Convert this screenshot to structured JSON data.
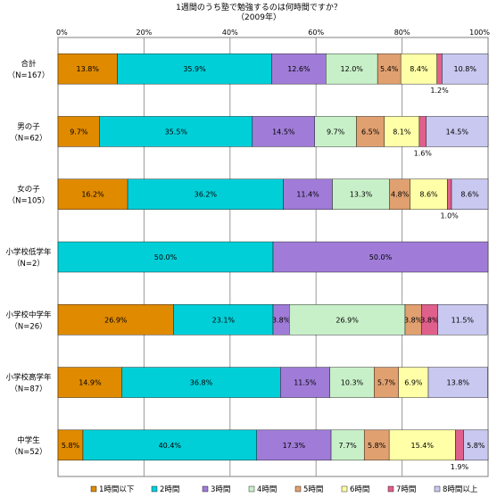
{
  "chart_data": {
    "type": "bar",
    "orientation": "horizontal",
    "stacked": true,
    "percent_stacked": true,
    "title": "1週間のうち塾で勉強するのは何時間ですか？",
    "subtitle": "（2009年）",
    "xlim": [
      0,
      100
    ],
    "x_ticks": [
      "0%",
      "20%",
      "40%",
      "60%",
      "80%",
      "100%"
    ],
    "x_tick_values": [
      0,
      20,
      40,
      60,
      80,
      100
    ],
    "grid": true,
    "legend_position": "bottom",
    "categories": [
      [
        "合計",
        "（N=167）"
      ],
      [
        "男の子",
        "（N=62）"
      ],
      [
        "女の子",
        "（N=105）"
      ],
      [
        "小学校低学年",
        "（N=2）"
      ],
      [
        "小学校中学年",
        "（N=26）"
      ],
      [
        "小学校高学年",
        "（N=87）"
      ],
      [
        "中学生",
        "（N=52）"
      ]
    ],
    "series": [
      {
        "name": "1時間以下",
        "color": "#e08a00",
        "values": [
          13.8,
          9.7,
          16.2,
          0.0,
          26.9,
          14.9,
          5.8
        ]
      },
      {
        "name": "2時間",
        "color": "#00cfd8",
        "values": [
          35.9,
          35.5,
          36.2,
          50.0,
          23.1,
          36.8,
          40.4
        ]
      },
      {
        "name": "3時間",
        "color": "#a07cd8",
        "values": [
          12.6,
          14.5,
          11.4,
          50.0,
          3.8,
          11.5,
          17.3
        ]
      },
      {
        "name": "4時間",
        "color": "#c8f0c8",
        "values": [
          12.0,
          9.7,
          13.3,
          0.0,
          26.9,
          10.3,
          7.7
        ]
      },
      {
        "name": "5時間",
        "color": "#e0a070",
        "values": [
          5.4,
          6.5,
          4.8,
          0.0,
          3.8,
          5.7,
          5.8
        ]
      },
      {
        "name": "6時間",
        "color": "#ffffa8",
        "values": [
          8.4,
          8.1,
          8.6,
          0.0,
          0.0,
          6.9,
          15.4
        ]
      },
      {
        "name": "7時間",
        "color": "#e0608c",
        "values": [
          1.2,
          1.6,
          1.0,
          0.0,
          3.8,
          0.0,
          1.9
        ]
      },
      {
        "name": "8時間以上",
        "color": "#c8c8f0",
        "values": [
          10.8,
          14.5,
          8.6,
          0.0,
          11.5,
          13.8,
          5.8
        ]
      }
    ],
    "data_labels": [
      [
        "13.8%",
        "35.9%",
        "12.6%",
        "12.0%",
        "5.4%",
        "8.4%",
        "1.2%",
        "10.8%"
      ],
      [
        "9.7%",
        "35.5%",
        "14.5%",
        "9.7%",
        "6.5%",
        "8.1%",
        "1.6%",
        "14.5%"
      ],
      [
        "16.2%",
        "36.2%",
        "11.4%",
        "13.3%",
        "4.8%",
        "8.6%",
        "1.0%",
        "8.6%"
      ],
      [
        "",
        "50.0%",
        "50.0%",
        "",
        "",
        "",
        "",
        ""
      ],
      [
        "26.9%",
        "23.1%",
        "3.8%",
        "26.9%",
        "3.8%",
        "",
        "3.8%",
        "11.5%"
      ],
      [
        "14.9%",
        "36.8%",
        "11.5%",
        "10.3%",
        "5.7%",
        "6.9%",
        "",
        "13.8%"
      ],
      [
        "5.8%",
        "40.4%",
        "17.3%",
        "7.7%",
        "5.8%",
        "15.4%",
        "1.9%",
        "5.8%"
      ]
    ]
  }
}
